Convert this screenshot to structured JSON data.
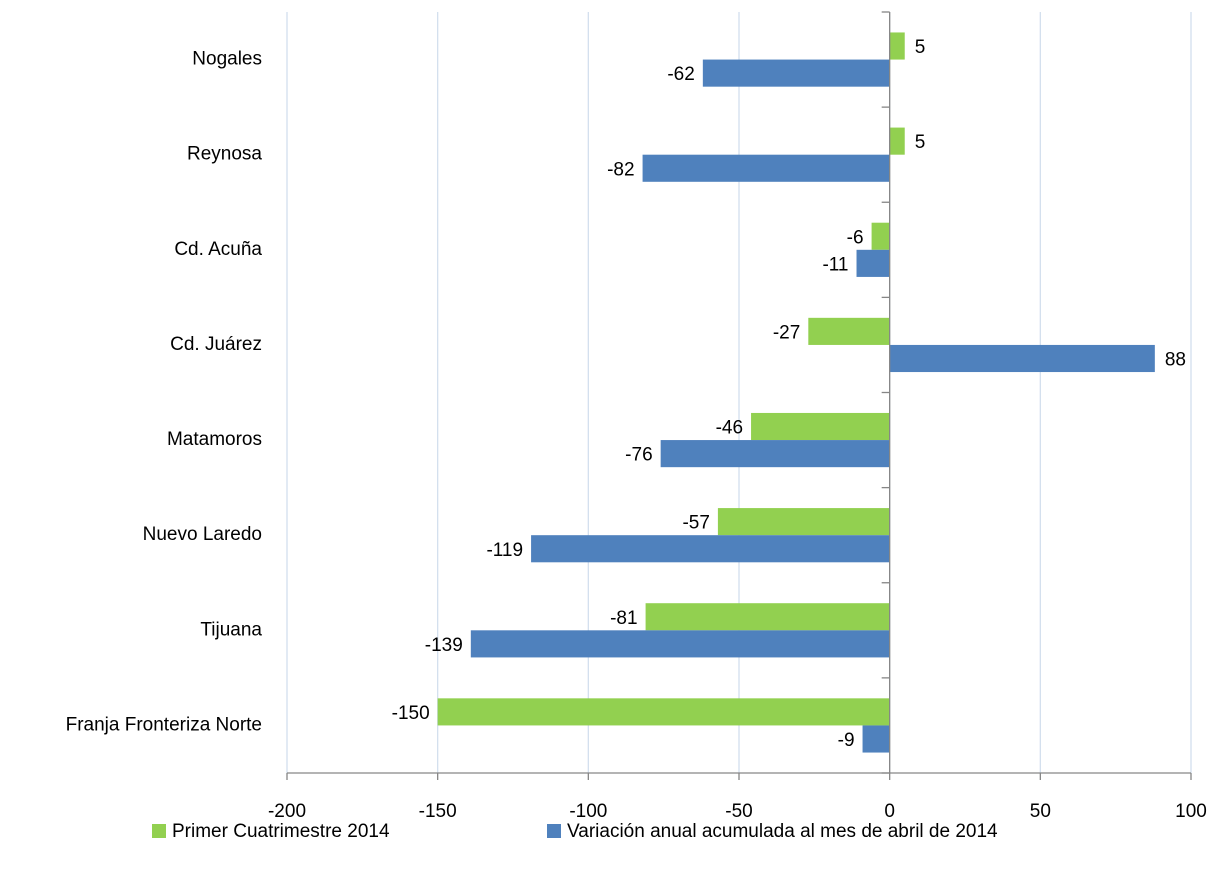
{
  "chart_data": {
    "type": "hbar",
    "categories": [
      "Nogales",
      "Reynosa",
      "Cd. Acuña",
      "Cd. Juárez",
      "Matamoros",
      "Nuevo Laredo",
      "Tijuana",
      "Franja Fronteriza Norte"
    ],
    "series": [
      {
        "name": "Primer Cuatrimestre 2014",
        "color": "#92d050",
        "values": [
          5,
          5,
          -6,
          -27,
          -46,
          -57,
          -81,
          -150
        ]
      },
      {
        "name": "Variación anual acumulada al mes de abril de 2014",
        "color": "#4f81bd",
        "values": [
          -62,
          -82,
          -11,
          88,
          -76,
          -119,
          -139,
          -9
        ]
      }
    ],
    "xlim": [
      -200,
      100
    ],
    "xticks": [
      -200,
      -150,
      -100,
      -50,
      0,
      50,
      100
    ],
    "grid": true,
    "legend": "bottom"
  }
}
